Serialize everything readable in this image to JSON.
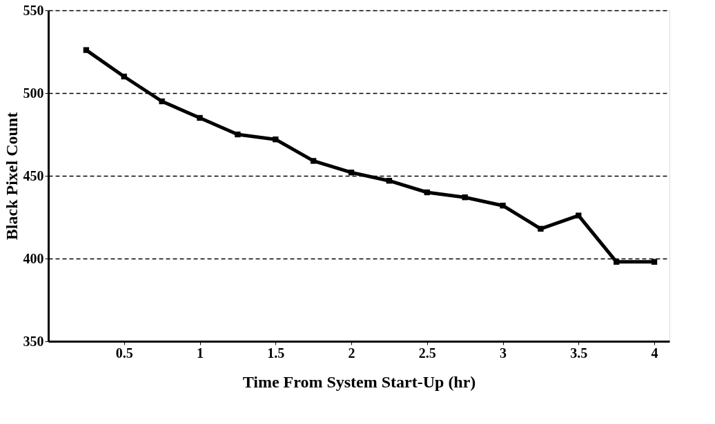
{
  "chart_data": {
    "type": "line",
    "xlabel": "Time From System Start-Up (hr)",
    "ylabel": "Black Pixel Count",
    "x": [
      0.25,
      0.5,
      0.75,
      1,
      1.25,
      1.5,
      1.75,
      2,
      2.25,
      2.5,
      2.75,
      3,
      3.25,
      3.5,
      3.75,
      4
    ],
    "series": [
      {
        "color": "#000000",
        "values": [
          526,
          510,
          495,
          485,
          475,
          472,
          459,
          452,
          447,
          440,
          437,
          432,
          418,
          426,
          398,
          398
        ]
      }
    ],
    "xlim": [
      0,
      4.1
    ],
    "xticks": [
      0.5,
      1,
      1.5,
      2,
      2.5,
      3,
      3.5,
      4
    ],
    "ylim": [
      350,
      550
    ],
    "yticks": [
      350,
      400,
      450,
      500,
      550
    ],
    "grid": "y",
    "marker": "square",
    "line_style": "solid"
  }
}
